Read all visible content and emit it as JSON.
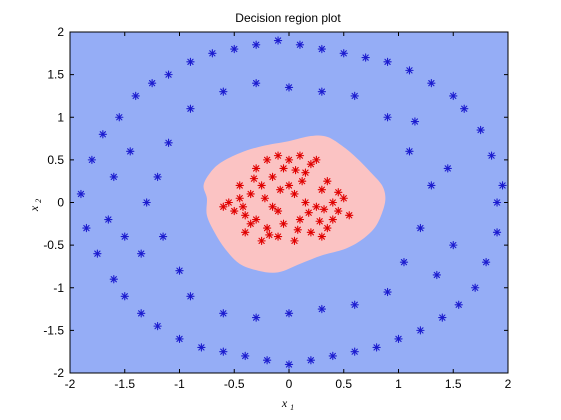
{
  "colors": {
    "outer_region": "#95adf6",
    "inner_region": "#fbc3c3",
    "outer_points": "#1c1ccf",
    "inner_points": "#e00000",
    "axes": "#000000"
  },
  "chart_data": {
    "type": "scatter",
    "title": "Decision region plot",
    "xlabel": "x",
    "xlabel_sub": "1",
    "ylabel": "x",
    "ylabel_sub": "2",
    "xlim": [
      -2,
      2
    ],
    "ylim": [
      -2,
      2
    ],
    "xticks": [
      -2,
      -1.5,
      -1,
      -0.5,
      0,
      0.5,
      1,
      1.5,
      2
    ],
    "yticks": [
      -2,
      -1.5,
      -1,
      -0.5,
      0,
      0.5,
      1,
      1.5,
      2
    ],
    "xtick_labels": [
      "-2",
      "-1.5",
      "-1",
      "-0.5",
      "0",
      "0.5",
      "1",
      "1.5",
      "2"
    ],
    "ytick_labels": [
      "-2",
      "-1.5",
      "-1",
      "-0.5",
      "0",
      "0.5",
      "1",
      "1.5",
      "2"
    ],
    "grid": false,
    "marker": "asterisk",
    "background_region": "outer class region fills the whole axes",
    "inner_region_boundary": [
      [
        -0.75,
        0.05
      ],
      [
        -0.78,
        0.2
      ],
      [
        -0.72,
        0.35
      ],
      [
        -0.62,
        0.47
      ],
      [
        -0.45,
        0.58
      ],
      [
        -0.25,
        0.66
      ],
      [
        0.0,
        0.72
      ],
      [
        0.2,
        0.78
      ],
      [
        0.35,
        0.77
      ],
      [
        0.5,
        0.65
      ],
      [
        0.62,
        0.52
      ],
      [
        0.75,
        0.35
      ],
      [
        0.85,
        0.2
      ],
      [
        0.88,
        0.05
      ],
      [
        0.85,
        -0.12
      ],
      [
        0.78,
        -0.3
      ],
      [
        0.65,
        -0.45
      ],
      [
        0.5,
        -0.55
      ],
      [
        0.3,
        -0.62
      ],
      [
        0.1,
        -0.72
      ],
      [
        -0.1,
        -0.82
      ],
      [
        -0.28,
        -0.8
      ],
      [
        -0.45,
        -0.72
      ],
      [
        -0.58,
        -0.55
      ],
      [
        -0.68,
        -0.35
      ],
      [
        -0.75,
        -0.15
      ]
    ],
    "series": [
      {
        "class": "inner",
        "points": [
          [
            -0.55,
            0.0
          ],
          [
            -0.5,
            -0.1
          ],
          [
            -0.45,
            0.05
          ],
          [
            -0.4,
            -0.15
          ],
          [
            -0.35,
            0.1
          ],
          [
            -0.3,
            -0.2
          ],
          [
            -0.25,
            0.2
          ],
          [
            -0.2,
            -0.3
          ],
          [
            -0.15,
            0.3
          ],
          [
            -0.1,
            -0.1
          ],
          [
            -0.05,
            0.4
          ],
          [
            0.0,
            0.5
          ],
          [
            0.05,
            0.1
          ],
          [
            0.1,
            -0.2
          ],
          [
            0.15,
            0.35
          ],
          [
            0.2,
            0.45
          ],
          [
            0.25,
            -0.05
          ],
          [
            0.3,
            0.15
          ],
          [
            0.35,
            -0.3
          ],
          [
            0.4,
            0.0
          ],
          [
            0.45,
            -0.1
          ],
          [
            0.5,
            0.05
          ],
          [
            0.55,
            -0.15
          ],
          [
            -0.3,
            0.4
          ],
          [
            -0.2,
            0.5
          ],
          [
            -0.1,
            0.55
          ],
          [
            0.1,
            0.55
          ],
          [
            0.25,
            0.5
          ],
          [
            -0.4,
            -0.35
          ],
          [
            -0.25,
            -0.45
          ],
          [
            -0.1,
            -0.4
          ],
          [
            0.05,
            -0.45
          ],
          [
            0.2,
            -0.35
          ],
          [
            0.3,
            -0.4
          ],
          [
            -0.45,
            0.2
          ],
          [
            -0.35,
            -0.25
          ],
          [
            -0.15,
            -0.05
          ],
          [
            0.0,
            0.2
          ],
          [
            0.15,
            0.0
          ],
          [
            0.35,
            0.25
          ],
          [
            0.4,
            -0.2
          ],
          [
            -0.05,
            -0.25
          ],
          [
            0.12,
            0.25
          ],
          [
            -0.22,
            0.05
          ],
          [
            0.28,
            -0.22
          ],
          [
            -0.6,
            -0.05
          ],
          [
            -0.32,
            0.28
          ],
          [
            0.06,
            0.38
          ],
          [
            0.45,
            0.12
          ],
          [
            -0.18,
            -0.38
          ],
          [
            0.18,
            -0.12
          ],
          [
            0.08,
            -0.32
          ],
          [
            -0.42,
            -0.05
          ],
          [
            0.32,
            -0.08
          ],
          [
            -0.08,
            0.15
          ]
        ]
      },
      {
        "class": "outer",
        "points": [
          [
            -1.9,
            0.1
          ],
          [
            -1.85,
            -0.3
          ],
          [
            -1.8,
            0.5
          ],
          [
            -1.75,
            -0.6
          ],
          [
            -1.7,
            0.8
          ],
          [
            -1.6,
            -0.9
          ],
          [
            -1.55,
            1.0
          ],
          [
            -1.5,
            -1.1
          ],
          [
            -1.4,
            1.25
          ],
          [
            -1.35,
            -1.3
          ],
          [
            -1.25,
            1.4
          ],
          [
            -1.2,
            -1.45
          ],
          [
            -1.1,
            1.5
          ],
          [
            -1.0,
            -1.6
          ],
          [
            -0.9,
            1.65
          ],
          [
            -0.8,
            -1.7
          ],
          [
            -0.7,
            1.75
          ],
          [
            -0.6,
            -1.75
          ],
          [
            -0.5,
            1.8
          ],
          [
            -0.4,
            -1.8
          ],
          [
            -0.3,
            1.85
          ],
          [
            -0.2,
            -1.85
          ],
          [
            -0.1,
            1.9
          ],
          [
            0.0,
            -1.9
          ],
          [
            0.1,
            1.85
          ],
          [
            0.2,
            -1.85
          ],
          [
            0.3,
            1.8
          ],
          [
            0.4,
            -1.8
          ],
          [
            0.5,
            1.75
          ],
          [
            0.6,
            -1.75
          ],
          [
            0.7,
            1.7
          ],
          [
            0.8,
            -1.7
          ],
          [
            0.9,
            1.65
          ],
          [
            1.0,
            -1.6
          ],
          [
            1.1,
            1.55
          ],
          [
            1.2,
            -1.5
          ],
          [
            1.3,
            1.4
          ],
          [
            1.4,
            -1.35
          ],
          [
            1.5,
            1.25
          ],
          [
            1.55,
            -1.2
          ],
          [
            1.6,
            1.1
          ],
          [
            1.7,
            -1.0
          ],
          [
            1.75,
            0.85
          ],
          [
            1.8,
            -0.7
          ],
          [
            1.85,
            0.55
          ],
          [
            1.9,
            -0.35
          ],
          [
            1.95,
            0.2
          ],
          [
            1.9,
            0.0
          ],
          [
            1.3,
            0.2
          ],
          [
            1.2,
            -0.3
          ],
          [
            1.1,
            0.6
          ],
          [
            1.05,
            -0.7
          ],
          [
            -1.2,
            0.3
          ],
          [
            -1.15,
            -0.4
          ],
          [
            -1.1,
            0.7
          ],
          [
            -1.0,
            -0.8
          ],
          [
            -1.3,
            0.0
          ],
          [
            -1.35,
            -0.6
          ],
          [
            -1.45,
            0.6
          ],
          [
            -0.9,
            1.1
          ],
          [
            -0.6,
            1.3
          ],
          [
            -0.3,
            1.4
          ],
          [
            0.0,
            1.35
          ],
          [
            0.3,
            1.3
          ],
          [
            0.6,
            1.25
          ],
          [
            0.9,
            1.0
          ],
          [
            -0.9,
            -1.1
          ],
          [
            -0.6,
            -1.3
          ],
          [
            -0.3,
            -1.35
          ],
          [
            0.0,
            -1.3
          ],
          [
            0.3,
            -1.25
          ],
          [
            0.6,
            -1.2
          ],
          [
            0.9,
            -1.05
          ],
          [
            1.15,
            0.95
          ],
          [
            1.45,
            0.4
          ],
          [
            1.5,
            -0.5
          ],
          [
            1.35,
            -0.85
          ],
          [
            -1.6,
            0.3
          ],
          [
            -1.65,
            -0.2
          ],
          [
            -1.5,
            -0.4
          ]
        ]
      }
    ]
  }
}
